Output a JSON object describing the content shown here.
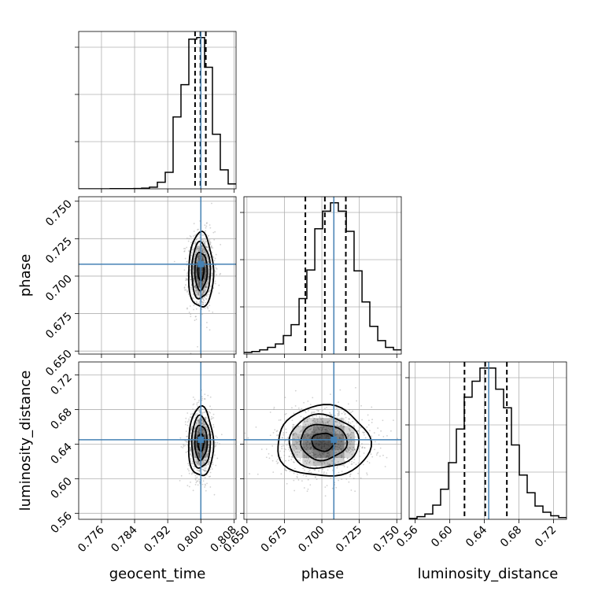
{
  "chart_data": {
    "type": "corner",
    "parameters": [
      "geocent_time",
      "phase",
      "luminosity_distance"
    ],
    "truths": {
      "geocent_time": 0.8,
      "phase": 0.708,
      "luminosity_distance": 0.645
    },
    "colors": {
      "truth": "#4682b4",
      "hist": "#000000",
      "grid": "#b0b0b0",
      "density": "#000000"
    },
    "ranges": {
      "geocent_time": [
        0.7705,
        0.8085
      ],
      "phase": [
        0.648,
        0.753
      ],
      "luminosity_distance": [
        0.553,
        0.735
      ]
    },
    "ticks": {
      "geocent_time": [
        0.776,
        0.784,
        0.792,
        0.8,
        0.808
      ],
      "phase": [
        0.65,
        0.675,
        0.7,
        0.725,
        0.75
      ],
      "luminosity_distance": [
        0.56,
        0.6,
        0.64,
        0.68,
        0.72
      ]
    },
    "tick_labels": {
      "geocent_time": [
        "0.776",
        "0.784",
        "0.792",
        "0.800",
        "0.808"
      ],
      "phase": [
        "0.650",
        "0.675",
        "0.700",
        "0.725",
        "0.750"
      ],
      "luminosity_distance": [
        "0.56",
        "0.60",
        "0.64",
        "0.68",
        "0.72"
      ]
    },
    "quantiles": {
      "geocent_time": [
        0.7986,
        0.7999,
        0.8012
      ],
      "phase": [
        0.689,
        0.702,
        0.716
      ],
      "luminosity_distance": [
        0.617,
        0.641,
        0.666
      ]
    },
    "histograms": {
      "geocent_time": {
        "edges": [
          0.7705,
          0.7724,
          0.7743,
          0.7762,
          0.7781,
          0.78,
          0.7819,
          0.7838,
          0.7857,
          0.7876,
          0.7895,
          0.7914,
          0.7933,
          0.7952,
          0.7971,
          0.799,
          0.8009,
          0.8028,
          0.8047,
          0.8066,
          0.8085
        ],
        "counts": [
          0,
          0,
          0,
          0,
          1,
          1,
          1,
          2,
          4,
          10,
          40,
          100,
          435,
          630,
          905,
          915,
          735,
          330,
          115,
          30
        ]
      },
      "phase": {
        "edges": [
          0.648,
          0.6533,
          0.6585,
          0.6638,
          0.669,
          0.6743,
          0.6795,
          0.6848,
          0.69,
          0.6953,
          0.7005,
          0.7058,
          0.711,
          0.7163,
          0.7215,
          0.7268,
          0.732,
          0.7373,
          0.7425,
          0.7478,
          0.753
        ],
        "counts": [
          10,
          15,
          25,
          40,
          60,
          110,
          175,
          330,
          500,
          745,
          850,
          900,
          850,
          730,
          495,
          310,
          165,
          80,
          40,
          25
        ]
      },
      "luminosity_distance": {
        "edges": [
          0.553,
          0.5621,
          0.5712,
          0.5803,
          0.5894,
          0.5985,
          0.6076,
          0.6167,
          0.6258,
          0.6349,
          0.644,
          0.6531,
          0.6622,
          0.6713,
          0.6804,
          0.6895,
          0.6986,
          0.7077,
          0.7168,
          0.7259,
          0.735
        ],
        "counts": [
          5,
          15,
          30,
          80,
          170,
          320,
          510,
          690,
          780,
          855,
          855,
          735,
          630,
          420,
          250,
          150,
          75,
          40,
          20,
          10
        ]
      }
    },
    "densities": [
      {
        "x": "geocent_time",
        "y": "phase",
        "mean": [
          0.8,
          0.7035
        ],
        "sd": [
          0.0015,
          0.0125
        ]
      },
      {
        "x": "geocent_time",
        "y": "luminosity_distance",
        "mean": [
          0.8,
          0.642
        ],
        "sd": [
          0.0015,
          0.02
        ]
      },
      {
        "x": "phase",
        "y": "luminosity_distance",
        "mean": [
          0.701,
          0.6425
        ],
        "sd": [
          0.0155,
          0.0205
        ]
      }
    ],
    "contour_levels_sigma": [
      0.5,
      1.0,
      1.5,
      2.0
    ]
  }
}
